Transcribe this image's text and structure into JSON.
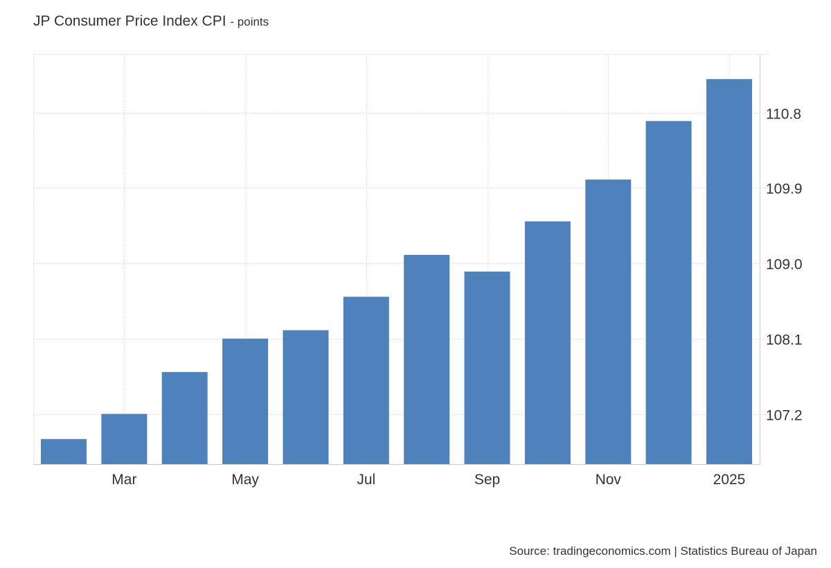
{
  "title": "JP Consumer Price Index CPI",
  "subtitle": "- points",
  "source": "Source: tradingeconomics.com | Statistics Bureau of Japan",
  "colors": {
    "bar": "#4f81bd",
    "grid": "#d9d9d9",
    "axis": "#cccccc",
    "text": "#333333"
  },
  "chart_data": {
    "type": "bar",
    "title": "JP Consumer Price Index CPI",
    "subtitle": "- points",
    "categories": [
      "2024-02",
      "2024-03",
      "2024-04",
      "2024-05",
      "2024-06",
      "2024-07",
      "2024-08",
      "2024-09",
      "2024-10",
      "2024-11",
      "2024-12",
      "2025-01"
    ],
    "values": [
      106.9,
      107.2,
      107.7,
      108.1,
      108.2,
      108.6,
      109.1,
      108.9,
      109.5,
      110.0,
      110.7,
      111.2
    ],
    "x_tick_labels": [
      {
        "category": "2024-03",
        "label": "Mar"
      },
      {
        "category": "2024-05",
        "label": "May"
      },
      {
        "category": "2024-07",
        "label": "Jul"
      },
      {
        "category": "2024-09",
        "label": "Sep"
      },
      {
        "category": "2024-11",
        "label": "Nov"
      },
      {
        "category": "2025-01",
        "label": "2025"
      }
    ],
    "y_ticks": [
      107.2,
      108.1,
      109.0,
      109.9,
      110.8
    ],
    "y_tick_labels": [
      "107.2",
      "108.1",
      "109.0",
      "109.9",
      "110.8"
    ],
    "ylim": [
      106.6,
      111.5
    ],
    "y_axis_position": "right",
    "grid": true,
    "legend": "none"
  }
}
